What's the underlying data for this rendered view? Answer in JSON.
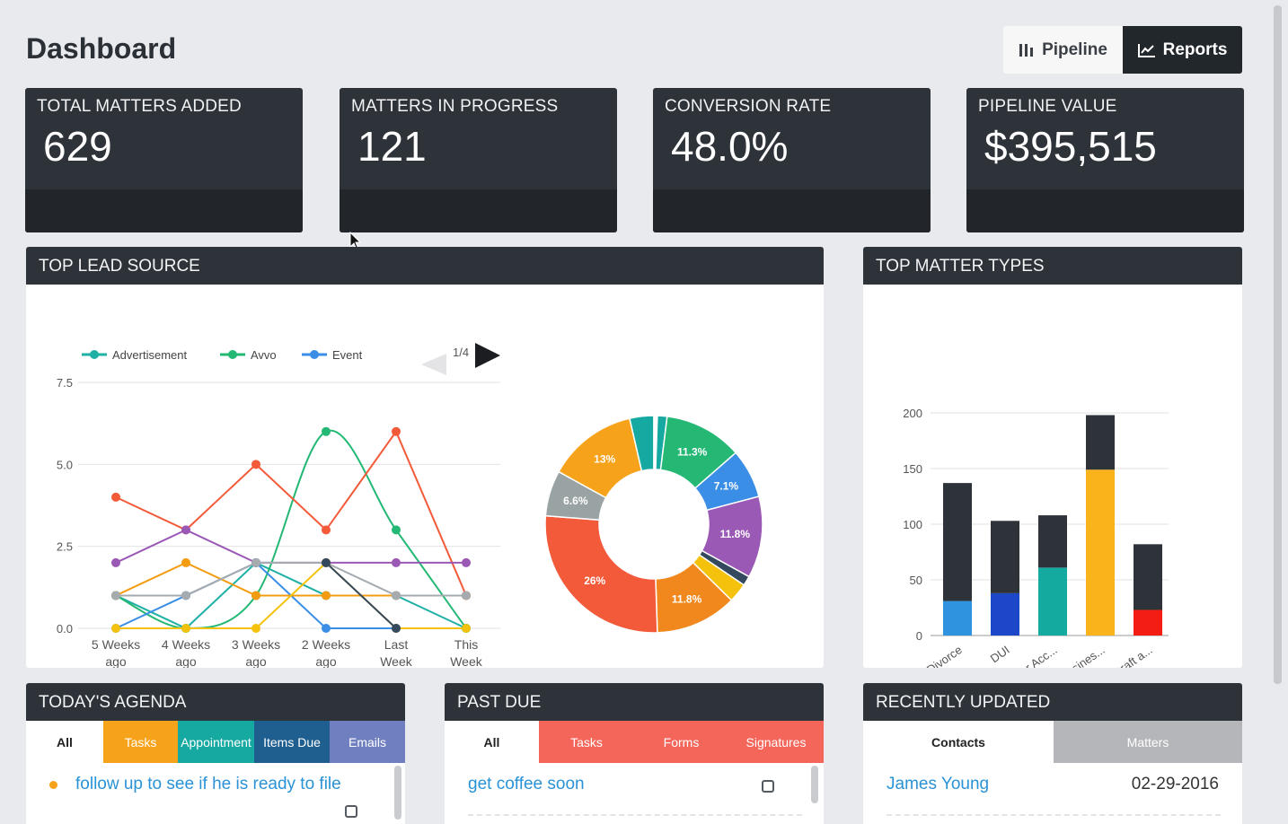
{
  "header": {
    "title": "Dashboard",
    "pipeline_label": "Pipeline",
    "reports_label": "Reports"
  },
  "stats": [
    {
      "label": "TOTAL MATTERS ADDED",
      "value": "629"
    },
    {
      "label": "MATTERS IN PROGRESS",
      "value": "121"
    },
    {
      "label": "CONVERSION RATE",
      "value": "48.0%"
    },
    {
      "label": "PIPELINE VALUE",
      "value": "$395,515"
    }
  ],
  "top_lead_source": {
    "title": "TOP LEAD SOURCE",
    "pager": "1/4"
  },
  "top_matter_types": {
    "title": "TOP MATTER TYPES"
  },
  "agenda": {
    "title": "TODAY'S AGENDA",
    "tabs": [
      "All",
      "Tasks",
      "Appointment",
      "Items Due",
      "Emails"
    ],
    "item": "follow up to see if he is ready to file"
  },
  "past_due": {
    "title": "PAST DUE",
    "tabs": [
      "All",
      "Tasks",
      "Forms",
      "Signatures"
    ],
    "item": "get coffee soon"
  },
  "recently_updated": {
    "title": "RECENTLY UPDATED",
    "tabs": [
      "Contacts",
      "Matters"
    ],
    "contact_name": "James Young",
    "contact_date": "02-29-2016"
  },
  "colors": {
    "dark": "#2e3339",
    "tasks_orange": "#f7a21b",
    "appointment_teal": "#16a9a2",
    "items_due_blue": "#1f5f8f",
    "emails_purple": "#6f7fbf",
    "past_due_red": "#f4655a",
    "matters_grey": "#b5b6ba"
  },
  "chart_data": [
    {
      "type": "line",
      "title": "",
      "x": [
        "5 Weeks ago",
        "4 Weeks ago",
        "3 Weeks ago",
        "2 Weeks ago",
        "Last Week",
        "This Week"
      ],
      "legend": [
        "Advertisement",
        "Avvo",
        "Event"
      ],
      "ylim": [
        0,
        7.5
      ],
      "yticks": [
        "0.0",
        "2.5",
        "5.0",
        "7.5"
      ],
      "grid": true,
      "series": [
        {
          "name": "Advertisement",
          "color": "#1fb0a6",
          "values": [
            1,
            0,
            2,
            1,
            1,
            0
          ]
        },
        {
          "name": "Avvo",
          "color": "#23b873",
          "values": [
            1,
            0,
            1,
            6,
            3,
            0
          ]
        },
        {
          "name": "Event",
          "color": "#3a8ee6",
          "values": [
            0,
            1,
            2,
            0,
            0,
            null
          ]
        },
        {
          "color": "#f25a3a",
          "values": [
            4,
            3,
            5,
            3,
            6,
            1
          ]
        },
        {
          "color": "#9b59b6",
          "values": [
            2,
            3,
            2,
            2,
            2,
            2
          ]
        },
        {
          "color": "#f39c12",
          "values": [
            1,
            2,
            1,
            1,
            1,
            1
          ]
        },
        {
          "color": "#a5abaf",
          "values": [
            1,
            1,
            2,
            2,
            1,
            1
          ]
        },
        {
          "color": "#f4c20d",
          "values": [
            0,
            0,
            0,
            2,
            0,
            0
          ]
        },
        {
          "color": "#34495e",
          "values": [
            null,
            null,
            null,
            2,
            0,
            null
          ]
        }
      ]
    },
    {
      "type": "pie",
      "title": "",
      "slices": [
        {
          "label": "",
          "value": 3.5,
          "color": "#16a9a2"
        },
        {
          "label": "",
          "value": 0.5,
          "color": "#ffffff"
        },
        {
          "label": "",
          "value": 1.4,
          "color": "#16a9a2"
        },
        {
          "label": "11.3%",
          "value": 11.3,
          "color": "#25b875"
        },
        {
          "label": "7.1%",
          "value": 7.1,
          "color": "#3a8ee6"
        },
        {
          "label": "11.8%",
          "value": 11.8,
          "color": "#9b59b6"
        },
        {
          "label": "",
          "value": 1.4,
          "color": "#34495e"
        },
        {
          "label": "",
          "value": 2.8,
          "color": "#f4c20d"
        },
        {
          "label": "11.8%",
          "value": 11.8,
          "color": "#f0881e"
        },
        {
          "label": "26%",
          "value": 26,
          "color": "#f25a3a"
        },
        {
          "label": "6.6%",
          "value": 6.6,
          "color": "#9aa3a3"
        },
        {
          "label": "13%",
          "value": 13,
          "color": "#f7a21b"
        }
      ]
    },
    {
      "type": "bar",
      "title": "",
      "categories": [
        "Divorce",
        "DUI",
        "Car Acc...",
        "Busines...",
        "Draft a..."
      ],
      "ylim": [
        0,
        200
      ],
      "yticks": [
        "0",
        "50",
        "100",
        "150",
        "200"
      ],
      "grid": true,
      "series": [
        {
          "values": [
            31,
            38,
            61,
            149,
            23
          ],
          "colors": [
            "#2f93e0",
            "#1c47c8",
            "#14aaa0",
            "#fbb31b",
            "#f41d14"
          ]
        },
        {
          "values": [
            106,
            65,
            47,
            49,
            59
          ],
          "color": "#2e3339"
        }
      ]
    }
  ]
}
